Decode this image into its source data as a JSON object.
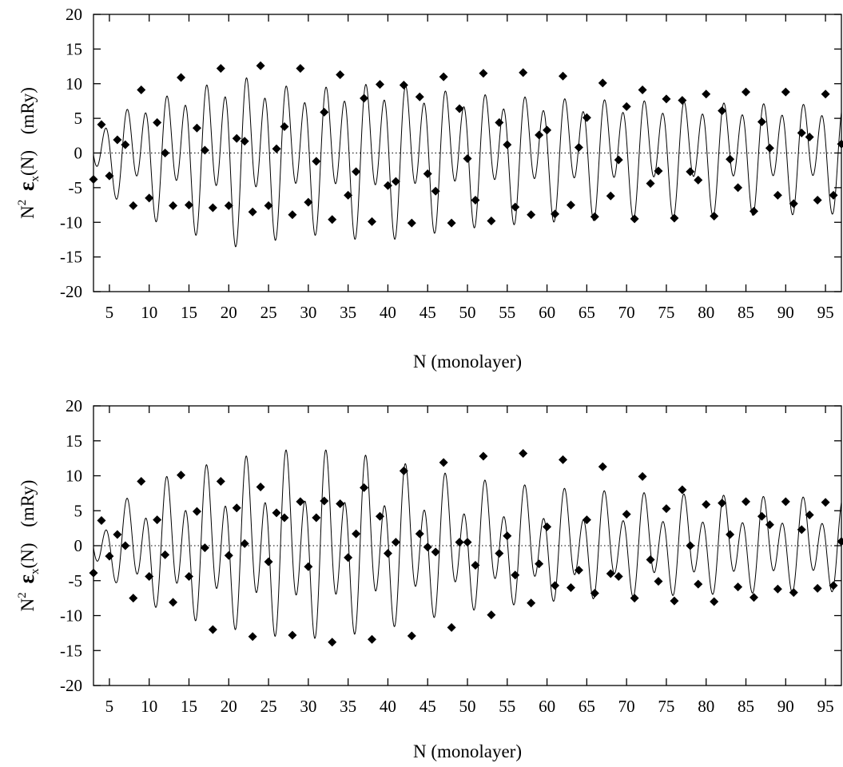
{
  "chart_data": [
    {
      "type": "scatter",
      "name": "top-panel",
      "xlabel": "N (monolayer)",
      "ylabel": {
        "base": "N",
        "sup": "2",
        "symbol": "ε",
        "sub": "x",
        "args": "(N)",
        "unit": "(mRy)"
      },
      "xlim": [
        3,
        97
      ],
      "ylim": [
        -20,
        20
      ],
      "xticks": [
        5,
        10,
        15,
        20,
        25,
        30,
        35,
        40,
        45,
        50,
        55,
        60,
        65,
        70,
        75,
        80,
        85,
        90,
        95
      ],
      "yticks": [
        -20,
        -15,
        -10,
        -5,
        0,
        5,
        10,
        15,
        20
      ],
      "zero_line": "dotted",
      "grid": false,
      "series": [
        {
          "style": "markers",
          "marker": "diamond",
          "x": [
            3,
            4,
            5,
            6,
            7,
            8,
            9,
            10,
            11,
            12,
            13,
            14,
            15,
            16,
            17,
            18,
            19,
            20,
            21,
            22,
            23,
            24,
            25,
            26,
            27,
            28,
            29,
            30,
            31,
            32,
            33,
            34,
            35,
            36,
            37,
            38,
            39,
            40,
            41,
            42,
            43,
            44,
            45,
            46,
            47,
            48,
            49,
            50,
            51,
            52,
            53,
            54,
            55,
            56,
            57,
            58,
            59,
            60,
            61,
            62,
            63,
            64,
            65,
            66,
            67,
            68,
            69,
            70,
            71,
            72,
            73,
            74,
            75,
            76,
            77,
            78,
            79,
            80,
            81,
            82,
            83,
            84,
            85,
            86,
            87,
            88,
            89,
            90,
            91,
            92,
            93,
            94,
            95,
            96,
            97
          ],
          "y": [
            -3.8,
            4.1,
            -3.3,
            1.9,
            1.2,
            -7.6,
            9.1,
            -6.5,
            4.4,
            0.0,
            -7.6,
            10.9,
            -7.5,
            3.6,
            0.4,
            -7.9,
            12.2,
            -7.6,
            2.1,
            1.7,
            -8.5,
            12.6,
            -7.6,
            0.6,
            3.8,
            -8.9,
            12.2,
            -7.1,
            -1.2,
            5.9,
            -9.6,
            11.3,
            -6.1,
            -2.7,
            7.9,
            -9.9,
            9.9,
            -4.7,
            -4.1,
            9.8,
            -10.1,
            8.1,
            -3.0,
            -5.5,
            11.0,
            -10.1,
            6.4,
            -0.8,
            -6.8,
            11.5,
            -9.8,
            4.4,
            1.2,
            -7.8,
            11.6,
            -8.9,
            2.6,
            3.3,
            -8.8,
            11.1,
            -7.5,
            0.8,
            5.1,
            -9.2,
            10.1,
            -6.2,
            -1.0,
            6.7,
            -9.5,
            9.1,
            -4.4,
            -2.6,
            7.8,
            -9.4,
            7.6,
            -2.7,
            -3.9,
            8.5,
            -9.1,
            6.1,
            -0.9,
            -5.0,
            8.8,
            -8.4,
            4.5,
            0.7,
            -6.1,
            8.8,
            -7.3,
            2.9,
            2.3,
            -6.8,
            8.5,
            -6.1,
            1.3
          ]
        },
        {
          "style": "line",
          "envelope": [
            4.8,
            6.2,
            8.7,
            9.5,
            10.5,
            11.6,
            12.6,
            13.0,
            12.1,
            11.4,
            11.2,
            11.5,
            11.8,
            11.9,
            11.7,
            11.2,
            10.7,
            10.3,
            10.0,
            9.8,
            9.6,
            9.4,
            9.3,
            9.2,
            9.1,
            9.0,
            8.9,
            8.8,
            8.7,
            8.6,
            8.5,
            8.5,
            8.4,
            8.4,
            8.3
          ]
        }
      ]
    },
    {
      "type": "scatter",
      "name": "bottom-panel",
      "xlabel": "N (monolayer)",
      "ylabel": {
        "base": "N",
        "sup": "2",
        "symbol": "ε",
        "sub": "x",
        "args": "(N)",
        "unit": "(mRy)"
      },
      "xlim": [
        3,
        97
      ],
      "ylim": [
        -20,
        20
      ],
      "xticks": [
        5,
        10,
        15,
        20,
        25,
        30,
        35,
        40,
        45,
        50,
        55,
        60,
        65,
        70,
        75,
        80,
        85,
        90,
        95
      ],
      "yticks": [
        -20,
        -15,
        -10,
        -5,
        0,
        5,
        10,
        15,
        20
      ],
      "zero_line": "dotted",
      "grid": false,
      "series": [
        {
          "style": "markers",
          "marker": "diamond",
          "x": [
            3,
            4,
            5,
            6,
            7,
            8,
            9,
            10,
            11,
            12,
            13,
            14,
            15,
            16,
            17,
            18,
            19,
            20,
            21,
            22,
            23,
            24,
            25,
            26,
            27,
            28,
            29,
            30,
            31,
            32,
            33,
            34,
            35,
            36,
            37,
            38,
            39,
            40,
            41,
            42,
            43,
            44,
            45,
            46,
            47,
            48,
            49,
            50,
            51,
            52,
            53,
            54,
            55,
            56,
            57,
            58,
            59,
            60,
            61,
            62,
            63,
            64,
            65,
            66,
            67,
            68,
            69,
            70,
            71,
            72,
            73,
            74,
            75,
            76,
            77,
            78,
            79,
            80,
            81,
            82,
            83,
            84,
            85,
            86,
            87,
            88,
            89,
            90,
            91,
            92,
            93,
            94,
            95,
            96,
            97
          ],
          "y": [
            -3.9,
            3.6,
            -1.5,
            1.6,
            0.0,
            -7.5,
            9.2,
            -4.4,
            3.7,
            -1.3,
            -8.1,
            10.1,
            -4.4,
            4.9,
            -0.3,
            -12.0,
            9.2,
            -1.4,
            5.4,
            0.3,
            -13.0,
            8.4,
            -2.3,
            4.7,
            4.0,
            -12.8,
            6.3,
            -3.0,
            4.0,
            6.4,
            -13.8,
            6.0,
            -1.7,
            1.7,
            8.3,
            -13.4,
            4.2,
            -1.1,
            0.5,
            10.7,
            -12.9,
            1.7,
            -0.2,
            -0.9,
            11.9,
            -11.7,
            0.5,
            0.5,
            -2.8,
            12.8,
            -9.9,
            -1.1,
            1.4,
            -4.2,
            13.2,
            -8.2,
            -2.6,
            2.7,
            -5.7,
            12.3,
            -6.0,
            -3.5,
            3.7,
            -6.8,
            11.3,
            -4.0,
            -4.4,
            4.5,
            -7.5,
            9.9,
            -2.0,
            -5.1,
            5.3,
            -7.9,
            8.0,
            0.0,
            -5.5,
            5.9,
            -8.0,
            6.1,
            1.6,
            -5.9,
            6.3,
            -7.4,
            4.2,
            3.0,
            -6.2,
            6.3,
            -6.7,
            2.3,
            4.4,
            -6.1,
            6.2,
            -5.7,
            0.6
          ]
        },
        {
          "style": "line",
          "envelope": [
            4.1,
            5.5,
            8.0,
            9.5,
            10.8,
            11.5,
            12.3,
            12.9,
            13.5,
            13.8,
            13.9,
            13.6,
            13.2,
            12.6,
            11.9,
            11.1,
            10.4,
            9.8,
            9.3,
            8.9,
            8.6,
            8.3,
            8.1,
            7.9,
            7.8,
            7.6,
            7.5,
            7.4,
            7.3,
            7.2,
            7.1,
            7.0,
            7.0,
            6.9,
            6.9
          ]
        }
      ]
    }
  ]
}
